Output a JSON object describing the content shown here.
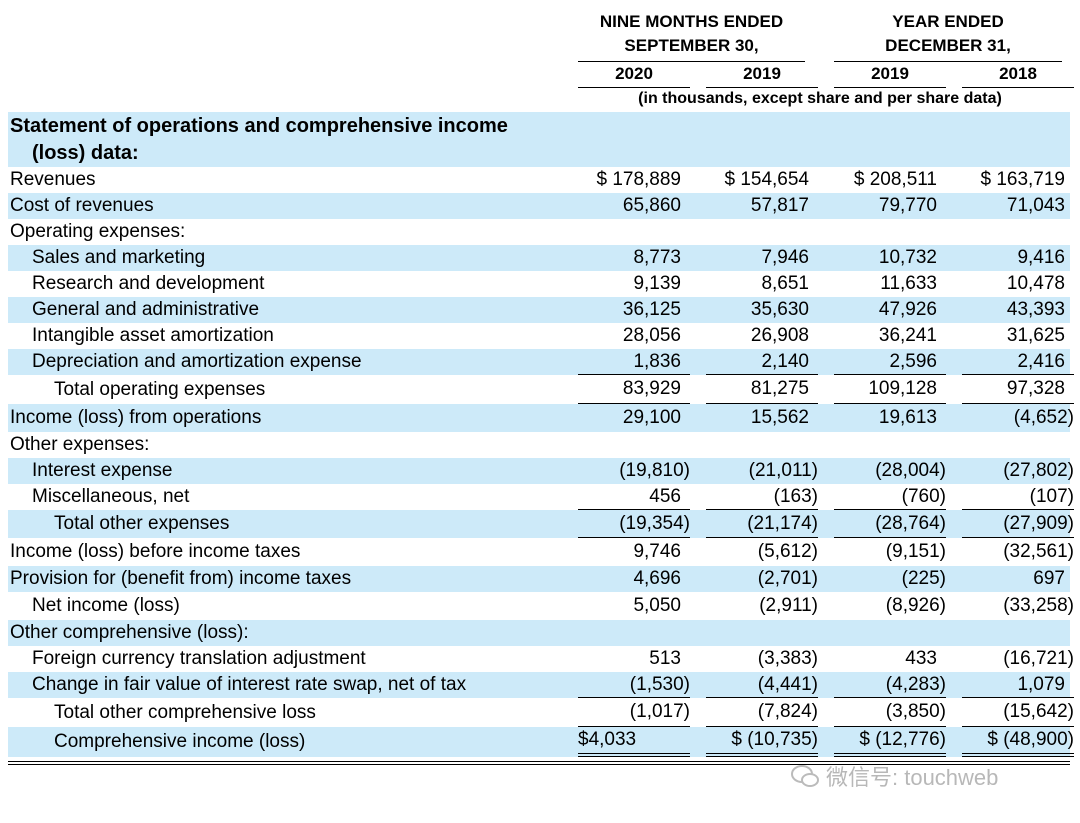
{
  "header": {
    "groups": [
      {
        "lines": [
          "NINE MONTHS ENDED",
          "SEPTEMBER 30,"
        ]
      },
      {
        "lines": [
          "YEAR ENDED",
          "DECEMBER 31,"
        ]
      }
    ],
    "years": [
      "2020",
      "2019",
      "2019",
      "2018"
    ],
    "note": "(in thousands, except share and per share data)"
  },
  "table": {
    "rows": [
      {
        "label": "Statement of operations and comprehensive income (loss) data:",
        "values": [
          "",
          "",
          "",
          ""
        ]
      },
      {
        "label": "Revenues",
        "values": [
          "$ 178,889",
          "$ 154,654",
          "$ 208,511",
          "$ 163,719"
        ]
      },
      {
        "label": "Cost of revenues",
        "values": [
          "65,860",
          "57,817",
          "79,770",
          "71,043"
        ]
      },
      {
        "label": "Operating expenses:",
        "values": [
          "",
          "",
          "",
          ""
        ]
      },
      {
        "label": "Sales and marketing",
        "values": [
          "8,773",
          "7,946",
          "10,732",
          "9,416"
        ]
      },
      {
        "label": "Research and development",
        "values": [
          "9,139",
          "8,651",
          "11,633",
          "10,478"
        ]
      },
      {
        "label": "General and administrative",
        "values": [
          "36,125",
          "35,630",
          "47,926",
          "43,393"
        ]
      },
      {
        "label": "Intangible asset amortization",
        "values": [
          "28,056",
          "26,908",
          "36,241",
          "31,625"
        ]
      },
      {
        "label": "Depreciation and amortization expense",
        "values": [
          "1,836",
          "2,140",
          "2,596",
          "2,416"
        ]
      },
      {
        "label": "Total operating expenses",
        "values": [
          "83,929",
          "81,275",
          "109,128",
          "97,328"
        ]
      },
      {
        "label": "Income (loss) from operations",
        "values": [
          "29,100",
          "15,562",
          "19,613",
          "(4,652)"
        ]
      },
      {
        "label": "Other expenses:",
        "values": [
          "",
          "",
          "",
          ""
        ]
      },
      {
        "label": "Interest expense",
        "values": [
          "(19,810)",
          "(21,011)",
          "(28,004)",
          "(27,802)"
        ]
      },
      {
        "label": "Miscellaneous, net",
        "values": [
          "456",
          "(163)",
          "(760)",
          "(107)"
        ]
      },
      {
        "label": "Total other expenses",
        "values": [
          "(19,354)",
          "(21,174)",
          "(28,764)",
          "(27,909)"
        ]
      },
      {
        "label": "Income (loss) before income taxes",
        "values": [
          "9,746",
          "(5,612)",
          "(9,151)",
          "(32,561)"
        ]
      },
      {
        "label": "Provision for (benefit from) income taxes",
        "values": [
          "4,696",
          "(2,701)",
          "(225)",
          "697"
        ]
      },
      {
        "label": "Net income (loss)",
        "values": [
          "5,050",
          "(2,911)",
          "(8,926)",
          "(33,258)"
        ]
      },
      {
        "label": "Other comprehensive (loss):",
        "values": [
          "",
          "",
          "",
          ""
        ]
      },
      {
        "label": "Foreign currency translation adjustment",
        "values": [
          "513",
          "(3,383)",
          "433",
          "(16,721)"
        ]
      },
      {
        "label": "Change in fair value of interest rate swap, net of tax",
        "values": [
          "(1,530)",
          "(4,441)",
          "(4,283)",
          "1,079"
        ]
      },
      {
        "label": "Total other comprehensive loss",
        "values": [
          "(1,017)",
          "(7,824)",
          "(3,850)",
          "(15,642)"
        ]
      },
      {
        "label": "Comprehensive income (loss)",
        "values": [
          "$ 4,033",
          "$ (10,735)",
          "$ (12,776)",
          "$ (48,900)"
        ]
      }
    ]
  },
  "watermark": "微信号: touchweb"
}
